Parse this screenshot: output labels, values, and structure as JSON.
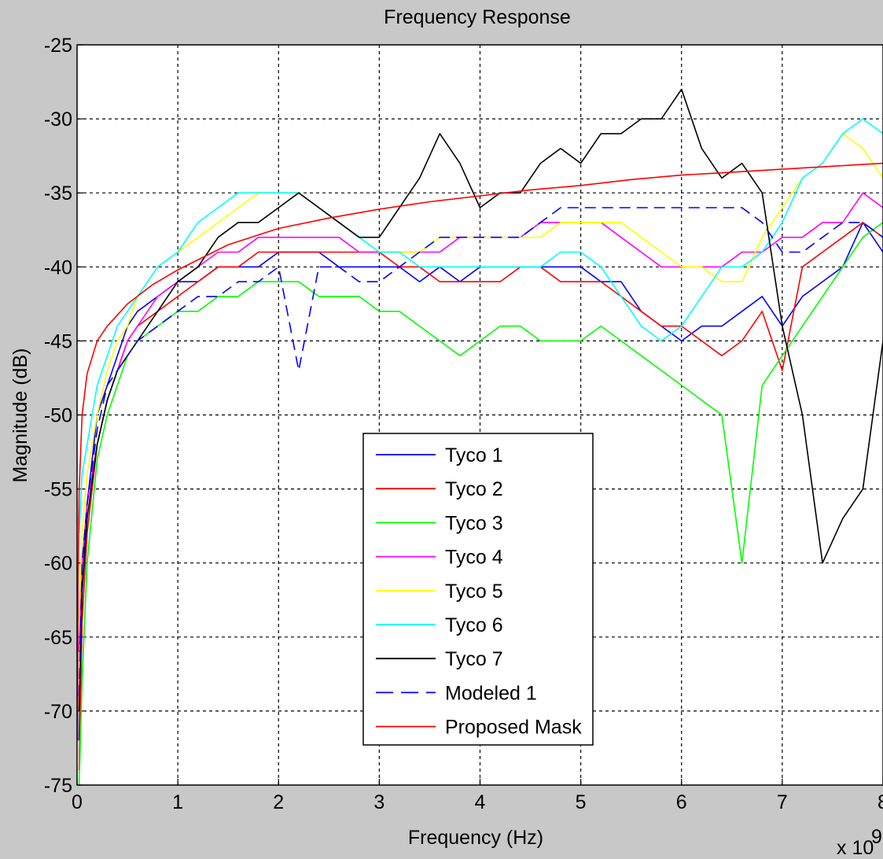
{
  "chart_data": {
    "type": "line",
    "title": "Frequency Response",
    "xlabel": "Frequency (Hz)",
    "ylabel": "Magnitude (dB)",
    "x_multiplier_base": "x 10",
    "x_multiplier_exp": "9",
    "xlim": [
      0,
      8
    ],
    "ylim": [
      -75,
      -25
    ],
    "xticks": [
      0,
      1,
      2,
      3,
      4,
      5,
      6,
      7,
      8
    ],
    "yticks": [
      -25,
      -30,
      -35,
      -40,
      -45,
      -50,
      -55,
      -60,
      -65,
      -70,
      -75
    ],
    "grid": true,
    "legend_position": "center",
    "series": [
      {
        "name": "Tyco 1",
        "color": "#0000ff",
        "dash": "solid",
        "x": [
          0.02,
          0.05,
          0.1,
          0.2,
          0.3,
          0.4,
          0.5,
          0.6,
          0.8,
          1.0,
          1.2,
          1.4,
          1.6,
          1.8,
          2.0,
          2.2,
          2.4,
          2.6,
          2.8,
          3.0,
          3.2,
          3.4,
          3.6,
          3.8,
          4.0,
          4.2,
          4.4,
          4.6,
          4.8,
          5.0,
          5.2,
          5.4,
          5.6,
          5.8,
          6.0,
          6.2,
          6.4,
          6.6,
          6.8,
          7.0,
          7.2,
          7.4,
          7.6,
          7.8,
          8.0
        ],
        "y": [
          -72,
          -62,
          -56,
          -50,
          -48,
          -46,
          -44,
          -43,
          -42,
          -41,
          -41,
          -40,
          -40,
          -40,
          -39,
          -39,
          -39,
          -40,
          -40,
          -40,
          -40,
          -41,
          -40,
          -41,
          -40,
          -40,
          -40,
          -40,
          -40,
          -40,
          -41,
          -41,
          -43,
          -44,
          -45,
          -44,
          -44,
          -43,
          -42,
          -44,
          -42,
          -41,
          -40,
          -37,
          -39
        ]
      },
      {
        "name": "Tyco 2",
        "color": "#ff0000",
        "dash": "solid",
        "x": [
          0.02,
          0.05,
          0.1,
          0.2,
          0.3,
          0.4,
          0.5,
          0.6,
          0.8,
          1.0,
          1.2,
          1.4,
          1.6,
          1.8,
          2.0,
          2.2,
          2.4,
          2.6,
          2.8,
          3.0,
          3.2,
          3.4,
          3.6,
          3.8,
          4.0,
          4.2,
          4.4,
          4.6,
          4.8,
          5.0,
          5.2,
          5.4,
          5.6,
          5.8,
          6.0,
          6.2,
          6.4,
          6.6,
          6.8,
          7.0,
          7.2,
          7.4,
          7.6,
          7.8,
          8.0
        ],
        "y": [
          -74,
          -64,
          -58,
          -52,
          -49,
          -47,
          -45,
          -44,
          -43,
          -42,
          -41,
          -40,
          -40,
          -39,
          -39,
          -39,
          -39,
          -39,
          -39,
          -39,
          -40,
          -40,
          -41,
          -41,
          -41,
          -41,
          -40,
          -40,
          -41,
          -41,
          -41,
          -42,
          -43,
          -44,
          -44,
          -45,
          -46,
          -45,
          -43,
          -47,
          -40,
          -39,
          -38,
          -37,
          -38
        ]
      },
      {
        "name": "Tyco 3",
        "color": "#00ff00",
        "dash": "solid",
        "x": [
          0.02,
          0.05,
          0.1,
          0.2,
          0.3,
          0.4,
          0.5,
          0.6,
          0.8,
          1.0,
          1.2,
          1.4,
          1.6,
          1.8,
          2.0,
          2.2,
          2.4,
          2.6,
          2.8,
          3.0,
          3.2,
          3.4,
          3.6,
          3.8,
          4.0,
          4.2,
          4.4,
          4.6,
          4.8,
          5.0,
          5.2,
          5.4,
          5.6,
          5.8,
          6.0,
          6.2,
          6.4,
          6.6,
          6.8,
          7.0,
          7.2,
          7.4,
          7.6,
          7.8,
          8.0
        ],
        "y": [
          -75,
          -68,
          -60,
          -53,
          -50,
          -48,
          -46,
          -45,
          -44,
          -43,
          -43,
          -42,
          -42,
          -41,
          -41,
          -41,
          -42,
          -42,
          -42,
          -43,
          -43,
          -44,
          -45,
          -46,
          -45,
          -44,
          -44,
          -45,
          -45,
          -45,
          -44,
          -45,
          -46,
          -47,
          -48,
          -49,
          -50,
          -60,
          -48,
          -46,
          -44,
          -42,
          -40,
          -38,
          -37
        ]
      },
      {
        "name": "Tyco 4",
        "color": "#ff00ff",
        "dash": "solid",
        "x": [
          0.02,
          0.05,
          0.1,
          0.2,
          0.3,
          0.4,
          0.5,
          0.6,
          0.8,
          1.0,
          1.2,
          1.4,
          1.6,
          1.8,
          2.0,
          2.2,
          2.4,
          2.6,
          2.8,
          3.0,
          3.2,
          3.4,
          3.6,
          3.8,
          4.0,
          4.2,
          4.4,
          4.6,
          4.8,
          5.0,
          5.2,
          5.4,
          5.6,
          5.8,
          6.0,
          6.2,
          6.4,
          6.6,
          6.8,
          7.0,
          7.2,
          7.4,
          7.6,
          7.8,
          8.0
        ],
        "y": [
          -66,
          -60,
          -56,
          -52,
          -49,
          -47,
          -45,
          -44,
          -42,
          -41,
          -40,
          -39,
          -39,
          -38,
          -38,
          -38,
          -38,
          -38,
          -39,
          -39,
          -39,
          -39,
          -39,
          -38,
          -38,
          -38,
          -38,
          -37,
          -37,
          -37,
          -37,
          -38,
          -39,
          -40,
          -40,
          -40,
          -40,
          -39,
          -39,
          -38,
          -38,
          -37,
          -37,
          -35,
          -36
        ]
      },
      {
        "name": "Tyco 5",
        "color": "#ffff00",
        "dash": "solid",
        "x": [
          0.02,
          0.05,
          0.1,
          0.2,
          0.3,
          0.4,
          0.5,
          0.6,
          0.8,
          1.0,
          1.2,
          1.4,
          1.6,
          1.8,
          2.0,
          2.2,
          2.4,
          2.6,
          2.8,
          3.0,
          3.2,
          3.4,
          3.6,
          3.8,
          4.0,
          4.2,
          4.4,
          4.6,
          4.8,
          5.0,
          5.2,
          5.4,
          5.6,
          5.8,
          6.0,
          6.2,
          6.4,
          6.6,
          6.8,
          7.0,
          7.2,
          7.4,
          7.6,
          7.8,
          8.0
        ],
        "y": [
          -64,
          -58,
          -54,
          -50,
          -47,
          -45,
          -44,
          -42,
          -40,
          -39,
          -38,
          -37,
          -36,
          -35,
          -35,
          -35,
          -36,
          -37,
          -38,
          -39,
          -39,
          -39,
          -38,
          -38,
          -38,
          -38,
          -38,
          -38,
          -37,
          -37,
          -37,
          -37,
          -38,
          -39,
          -40,
          -40,
          -41,
          -41,
          -38,
          -36,
          -34,
          -33,
          -31,
          -32,
          -34
        ]
      },
      {
        "name": "Tyco 6",
        "color": "#00ffff",
        "dash": "solid",
        "x": [
          0.02,
          0.05,
          0.1,
          0.2,
          0.3,
          0.4,
          0.5,
          0.6,
          0.8,
          1.0,
          1.2,
          1.4,
          1.6,
          1.8,
          2.0,
          2.2,
          2.4,
          2.6,
          2.8,
          3.0,
          3.2,
          3.4,
          3.6,
          3.8,
          4.0,
          4.2,
          4.4,
          4.6,
          4.8,
          5.0,
          5.2,
          5.4,
          5.6,
          5.8,
          6.0,
          6.2,
          6.4,
          6.6,
          6.8,
          7.0,
          7.2,
          7.4,
          7.6,
          7.8,
          8.0
        ],
        "y": [
          -58,
          -54,
          -52,
          -48,
          -46,
          -44,
          -43,
          -42,
          -40,
          -39,
          -37,
          -36,
          -35,
          -35,
          -35,
          -35,
          -36,
          -37,
          -38,
          -39,
          -39,
          -40,
          -40,
          -40,
          -40,
          -40,
          -40,
          -40,
          -39,
          -39,
          -40,
          -42,
          -44,
          -45,
          -44,
          -42,
          -40,
          -40,
          -39,
          -37,
          -34,
          -33,
          -31,
          -30,
          -31
        ]
      },
      {
        "name": "Tyco 7",
        "color": "#000000",
        "dash": "solid",
        "x": [
          0.02,
          0.05,
          0.1,
          0.2,
          0.3,
          0.4,
          0.5,
          0.6,
          0.8,
          1.0,
          1.2,
          1.4,
          1.6,
          1.8,
          2.0,
          2.2,
          2.4,
          2.6,
          2.8,
          3.0,
          3.2,
          3.4,
          3.6,
          3.8,
          4.0,
          4.2,
          4.4,
          4.6,
          4.8,
          5.0,
          5.2,
          5.4,
          5.6,
          5.8,
          6.0,
          6.2,
          6.4,
          6.6,
          6.8,
          7.0,
          7.2,
          7.4,
          7.6,
          7.8,
          8.0
        ],
        "y": [
          -70,
          -62,
          -57,
          -52,
          -49,
          -47,
          -46,
          -45,
          -43,
          -41,
          -40,
          -38,
          -37,
          -37,
          -36,
          -35,
          -36,
          -37,
          -38,
          -38,
          -36,
          -34,
          -31,
          -33,
          -36,
          -35,
          -35,
          -33,
          -32,
          -33,
          -31,
          -31,
          -30,
          -30,
          -28,
          -32,
          -34,
          -33,
          -35,
          -44,
          -50,
          -60,
          -57,
          -55,
          -45
        ]
      },
      {
        "name": "Modeled 1",
        "color": "#0000ff",
        "dash": "dashed",
        "x": [
          0.02,
          0.05,
          0.1,
          0.2,
          0.3,
          0.4,
          0.5,
          0.6,
          0.8,
          1.0,
          1.2,
          1.4,
          1.6,
          1.8,
          2.0,
          2.2,
          2.4,
          2.6,
          2.8,
          3.0,
          3.2,
          3.4,
          3.6,
          3.8,
          4.0,
          4.2,
          4.4,
          4.6,
          4.8,
          5.0,
          5.2,
          5.4,
          5.6,
          5.8,
          6.0,
          6.2,
          6.4,
          6.6,
          6.8,
          7.0,
          7.2,
          7.4,
          7.6,
          7.8,
          8.0
        ],
        "y": [
          -69,
          -60,
          -56,
          -51,
          -48,
          -47,
          -46,
          -45,
          -44,
          -43,
          -42,
          -42,
          -41,
          -41,
          -40,
          -47,
          -40,
          -40,
          -41,
          -41,
          -40,
          -39,
          -38,
          -38,
          -38,
          -38,
          -38,
          -37,
          -36,
          -36,
          -36,
          -36,
          -36,
          -36,
          -36,
          -36,
          -36,
          -36,
          -37,
          -39,
          -39,
          -38,
          -37,
          -37,
          -38
        ]
      },
      {
        "name": "Proposed Mask",
        "color": "#ff0000",
        "dash": "solid",
        "x": [
          0.005,
          0.01,
          0.02,
          0.05,
          0.1,
          0.2,
          0.3,
          0.5,
          0.75,
          1.0,
          1.5,
          2.0,
          2.5,
          3.0,
          3.5,
          4.0,
          4.5,
          5.0,
          5.5,
          6.0,
          6.5,
          7.0,
          7.5,
          8.0
        ],
        "y": [
          -72,
          -61.2,
          -55.2,
          -50,
          -47.2,
          -45,
          -44,
          -42.5,
          -41.2,
          -40.2,
          -38.5,
          -37.4,
          -36.7,
          -36.1,
          -35.6,
          -35.2,
          -34.8,
          -34.5,
          -34.1,
          -33.8,
          -33.6,
          -33.4,
          -33.2,
          -33.0
        ]
      }
    ]
  }
}
